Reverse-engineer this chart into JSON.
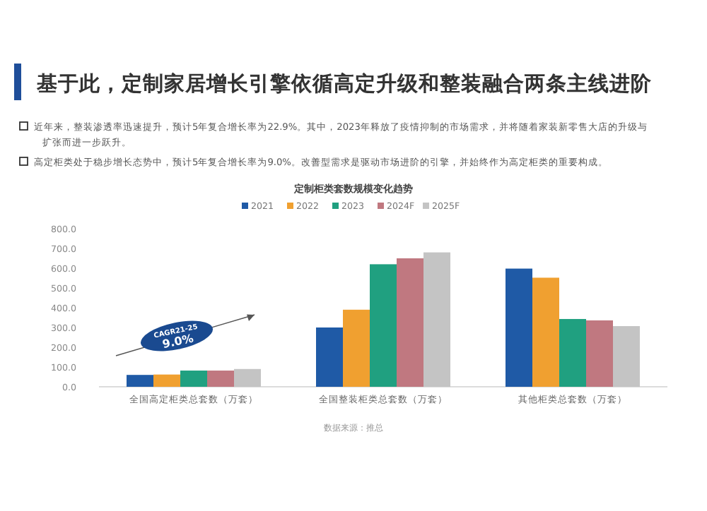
{
  "chart_data": {
    "type": "bar",
    "title": "基于此，定制家居增长引擎依循高定升级和整装融合两条主线进阶",
    "subtitle": "定制柜类套数规模变化趋势",
    "annotations": [
      "近年来，整装渗透率迅速提升，预计5年复合增长率为22.9%。其中，2023年释放了疫情抑制的市场需求，并将随着家装新零售大店的升级与扩张而进一步跃升。",
      "高定柜类处于稳步增长态势中，预计5年复合增长率为9.0%。改善型需求是驱动市场进阶的引擎，并始终作为高定柜类的重要构成。",
      "CAGR21-25\n9.0%",
      "数据来源：推总"
    ],
    "categories": [
      "全国高定柜类总套数（万套）",
      "全国整装柜类总套数（万套）",
      "其他柜类总套数（万套）"
    ],
    "series": [
      {
        "name": "2021",
        "color": "#1f5aa6",
        "values": [
          60,
          300,
          598
        ]
      },
      {
        "name": "2022",
        "color": "#f0a030",
        "values": [
          62,
          390,
          552
        ]
      },
      {
        "name": "2023",
        "color": "#20a080",
        "values": [
          82,
          620,
          343
        ]
      },
      {
        "name": "2024F",
        "color": "#c07880",
        "values": [
          82,
          650,
          336
        ]
      },
      {
        "name": "2025F",
        "color": "#c4c4c4",
        "values": [
          90,
          680,
          307
        ]
      }
    ],
    "ylim": [
      0,
      800
    ],
    "yticks": [
      {
        "value": 0,
        "label": "0.0"
      },
      {
        "value": 100,
        "label": "100.0"
      },
      {
        "value": 200,
        "label": "200.0"
      },
      {
        "value": 300,
        "label": "300.0"
      },
      {
        "value": 400,
        "label": "400.0"
      },
      {
        "value": 500,
        "label": "500.0"
      },
      {
        "value": 600,
        "label": "600.0"
      },
      {
        "value": 700,
        "label": "700.0"
      },
      {
        "value": 800,
        "label": "800.0"
      }
    ],
    "grid": false,
    "legend": "top"
  }
}
